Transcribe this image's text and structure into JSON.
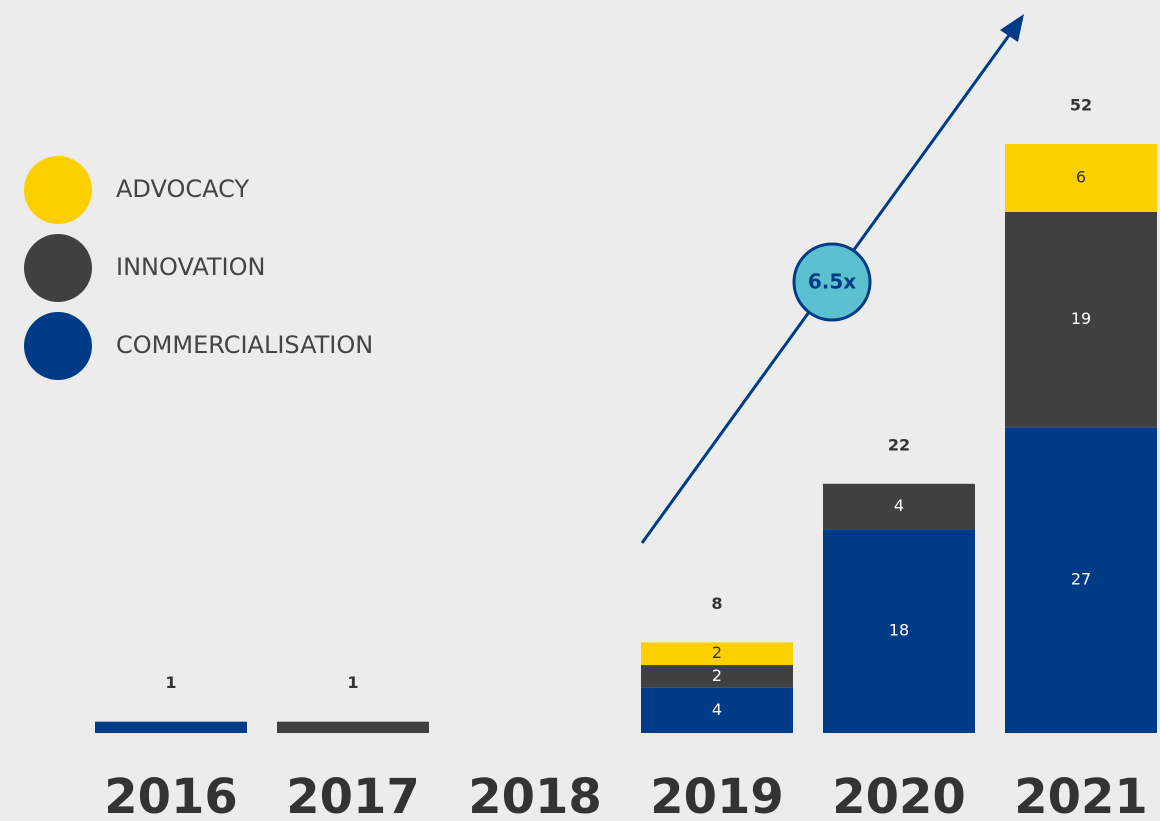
{
  "chart_data": {
    "type": "stacked-bar",
    "categories": [
      "2016",
      "2017",
      "2018",
      "2019",
      "2020",
      "2021"
    ],
    "series": [
      {
        "name": "COMMERCIALISATION",
        "color": "#003b87",
        "values": [
          1,
          null,
          null,
          4,
          18,
          27
        ]
      },
      {
        "name": "INNOVATION",
        "color": "#404040",
        "values": [
          null,
          1,
          null,
          2,
          4,
          19
        ]
      },
      {
        "name": "ADVOCACY",
        "color": "#fcd000",
        "values": [
          null,
          null,
          null,
          2,
          null,
          6
        ]
      }
    ],
    "totals": [
      1,
      1,
      null,
      8,
      22,
      52
    ],
    "annotation": "6.5x"
  }
}
